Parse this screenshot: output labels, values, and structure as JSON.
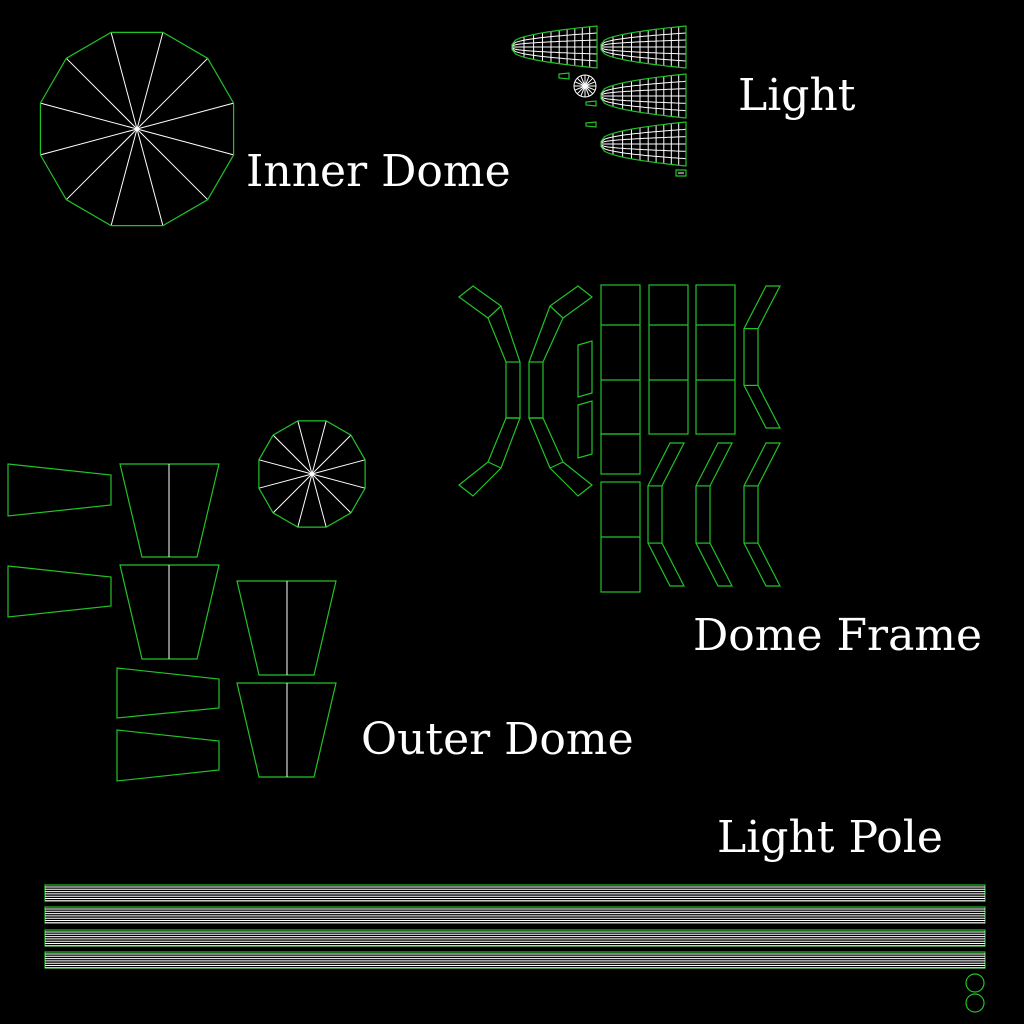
{
  "labels": {
    "inner_dome": "Inner Dome",
    "light": "Light",
    "dome_frame": "Dome Frame",
    "outer_dome": "Outer Dome",
    "light_pole": "Light Pole"
  },
  "colors": {
    "background": "#000000",
    "uv_border": "#22c229",
    "uv_interior": "#ffffff",
    "label": "#ffffff"
  }
}
